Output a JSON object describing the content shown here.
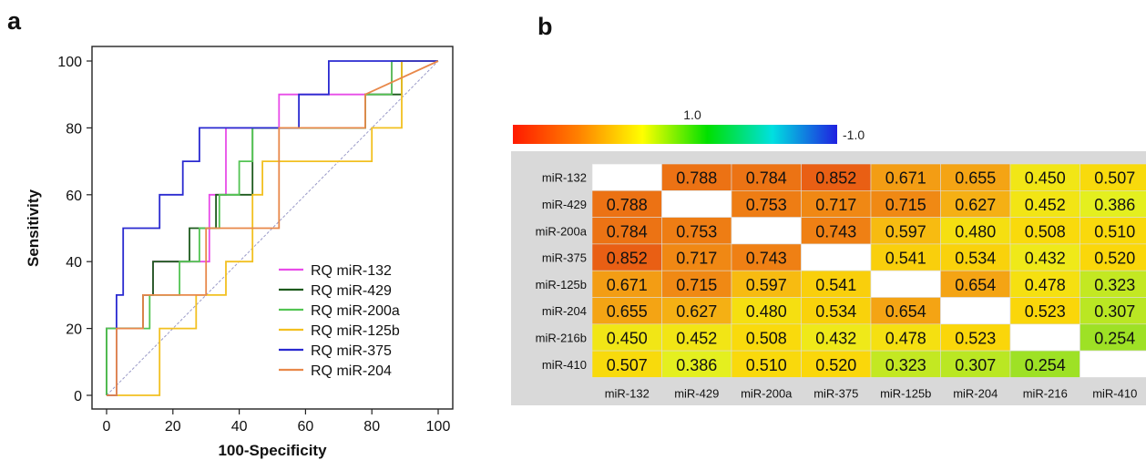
{
  "panel_a_label": "a",
  "panel_b_label": "b",
  "chart_data": [
    {
      "type": "line",
      "xlabel": "100-Specificity",
      "ylabel": "Sensitivity",
      "xlim": [
        0,
        100
      ],
      "ylim": [
        0,
        100
      ],
      "xticks": [
        0,
        20,
        40,
        60,
        80,
        100
      ],
      "yticks": [
        0,
        20,
        40,
        60,
        80,
        100
      ],
      "x_tick_labels": [
        "0",
        "20",
        "40",
        "60",
        "80",
        "100"
      ],
      "y_tick_labels": [
        "0",
        "20",
        "40",
        "60",
        "80",
        "100"
      ],
      "legend_position": "bottom-right",
      "reference_line": {
        "x": [
          0,
          100
        ],
        "y": [
          0,
          100
        ],
        "color": "#9a9ac8"
      },
      "series": [
        {
          "name": "RQ miR-132",
          "color": "#e84ce8",
          "x": [
            0,
            0,
            11,
            11,
            14,
            14,
            31,
            31,
            36,
            36,
            44,
            44,
            52,
            52,
            78,
            78,
            86,
            86,
            100
          ],
          "y": [
            0,
            20,
            20,
            30,
            30,
            40,
            40,
            60,
            60,
            80,
            80,
            80,
            80,
            90,
            90,
            90,
            90,
            100,
            100
          ]
        },
        {
          "name": "RQ miR-429",
          "color": "#1c5a1c",
          "x": [
            0,
            0,
            11,
            11,
            14,
            14,
            25,
            25,
            33,
            33,
            44,
            44,
            50,
            50,
            78,
            78,
            89,
            89,
            100
          ],
          "y": [
            0,
            20,
            20,
            30,
            30,
            40,
            40,
            50,
            50,
            60,
            60,
            80,
            80,
            80,
            80,
            90,
            90,
            100,
            100
          ]
        },
        {
          "name": "RQ miR-200a",
          "color": "#53c453",
          "x": [
            0,
            0,
            13,
            13,
            22,
            22,
            28,
            28,
            34,
            34,
            40,
            40,
            44,
            44,
            50,
            50,
            78,
            78,
            86,
            86,
            100
          ],
          "y": [
            0,
            20,
            20,
            30,
            30,
            40,
            40,
            50,
            50,
            60,
            60,
            70,
            70,
            80,
            80,
            80,
            80,
            90,
            90,
            100,
            100
          ]
        },
        {
          "name": "RQ miR-125b",
          "color": "#f2c020",
          "x": [
            0,
            0,
            16,
            16,
            27,
            27,
            36,
            36,
            44,
            44,
            47,
            47,
            80,
            80,
            89,
            89,
            100
          ],
          "y": [
            0,
            0,
            0,
            20,
            20,
            30,
            30,
            40,
            40,
            60,
            60,
            70,
            70,
            80,
            80,
            100,
            100
          ]
        },
        {
          "name": "RQ miR-375",
          "color": "#2a2ad0",
          "x": [
            0,
            0,
            3,
            3,
            5,
            5,
            16,
            16,
            23,
            23,
            25,
            25,
            28,
            28,
            58,
            58,
            67,
            67,
            100
          ],
          "y": [
            0,
            0,
            0,
            30,
            30,
            50,
            50,
            60,
            60,
            70,
            70,
            70,
            70,
            80,
            80,
            90,
            90,
            100,
            100
          ]
        },
        {
          "name": "RQ miR-204",
          "color": "#e8884a",
          "x": [
            0,
            0,
            3,
            3,
            11,
            11,
            25,
            25,
            30,
            30,
            42,
            42,
            52,
            52,
            78,
            78,
            100
          ],
          "y": [
            0,
            0,
            0,
            20,
            20,
            30,
            30,
            30,
            30,
            50,
            50,
            50,
            50,
            80,
            80,
            90,
            100
          ]
        }
      ]
    },
    {
      "type": "heatmap",
      "colorbar": {
        "top_label": "1.0",
        "right_label": "-1.0",
        "colors": [
          "#ff1a00",
          "#ff8000",
          "#ffff00",
          "#00e000",
          "#00e0e0",
          "#2020e0"
        ]
      },
      "row_labels": [
        "miR-132",
        "miR-429",
        "miR-200a",
        "miR-375",
        "miR-125b",
        "miR-204",
        "miR-216b",
        "miR-410"
      ],
      "col_labels": [
        "miR-132",
        "miR-429",
        "miR-200a",
        "miR-375",
        "miR-125b",
        "miR-204",
        "miR-216",
        "miR-410"
      ],
      "values": [
        [
          null,
          "0.788",
          "0.784",
          "0.852",
          "0.671",
          "0.655",
          "0.450",
          "0.507"
        ],
        [
          "0.788",
          null,
          "0.753",
          "0.717",
          "0.715",
          "0.627",
          "0.452",
          "0.386"
        ],
        [
          "0.784",
          "0.753",
          null,
          "0.743",
          "0.597",
          "0.480",
          "0.508",
          "0.510"
        ],
        [
          "0.852",
          "0.717",
          "0.743",
          null,
          "0.541",
          "0.534",
          "0.432",
          "0.520"
        ],
        [
          "0.671",
          "0.715",
          "0.597",
          "0.541",
          null,
          "0.654",
          "0.478",
          "0.323"
        ],
        [
          "0.655",
          "0.627",
          "0.480",
          "0.534",
          "0.654",
          null,
          "0.523",
          "0.307"
        ],
        [
          "0.450",
          "0.452",
          "0.508",
          "0.432",
          "0.478",
          "0.523",
          null,
          "0.254"
        ],
        [
          "0.507",
          "0.386",
          "0.510",
          "0.520",
          "0.323",
          "0.307",
          "0.254",
          null
        ]
      ]
    }
  ]
}
